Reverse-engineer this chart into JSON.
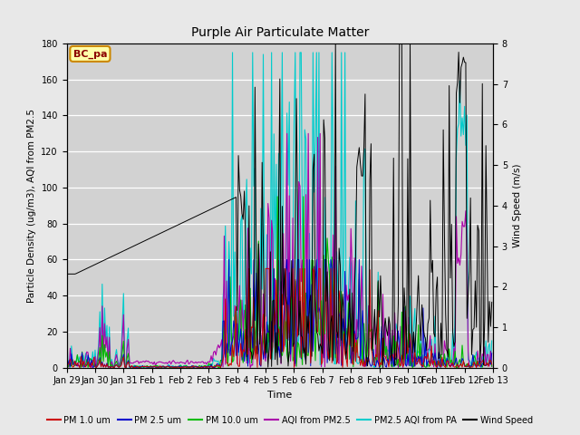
{
  "title": "Purple Air Particulate Matter",
  "xlabel": "Time",
  "ylabel_left": "Particle Density (ug/m3), AQI from PM2.5",
  "ylabel_right": "Wind Speed (m/s)",
  "annotation": "BC_pa",
  "ylim_left": [
    0,
    180
  ],
  "ylim_right": [
    0,
    8.0
  ],
  "background_color": "#e8e8e8",
  "plot_bg_color": "#d2d2d2",
  "series_colors": {
    "pm1": "#cc0000",
    "pm25": "#0000cc",
    "pm10": "#00bb00",
    "aqi_pm25": "#aa00aa",
    "aqi_pa": "#00cccc",
    "wind": "#000000"
  },
  "legend_entries": [
    "PM 1.0 um",
    "PM 2.5 um",
    "PM 10.0 um",
    "AQI from PM2.5",
    "PM2.5 AQI from PA",
    "Wind Speed"
  ],
  "xtick_labels": [
    "Jan 29",
    "Jan 30",
    "Jan 31",
    "Feb 1",
    "Feb 2",
    "Feb 3",
    "Feb 4",
    "Feb 5",
    "Feb 6",
    "Feb 7",
    "Feb 8",
    "Feb 9",
    "Feb 10",
    "Feb 11",
    "Feb 12",
    "Feb 13"
  ]
}
